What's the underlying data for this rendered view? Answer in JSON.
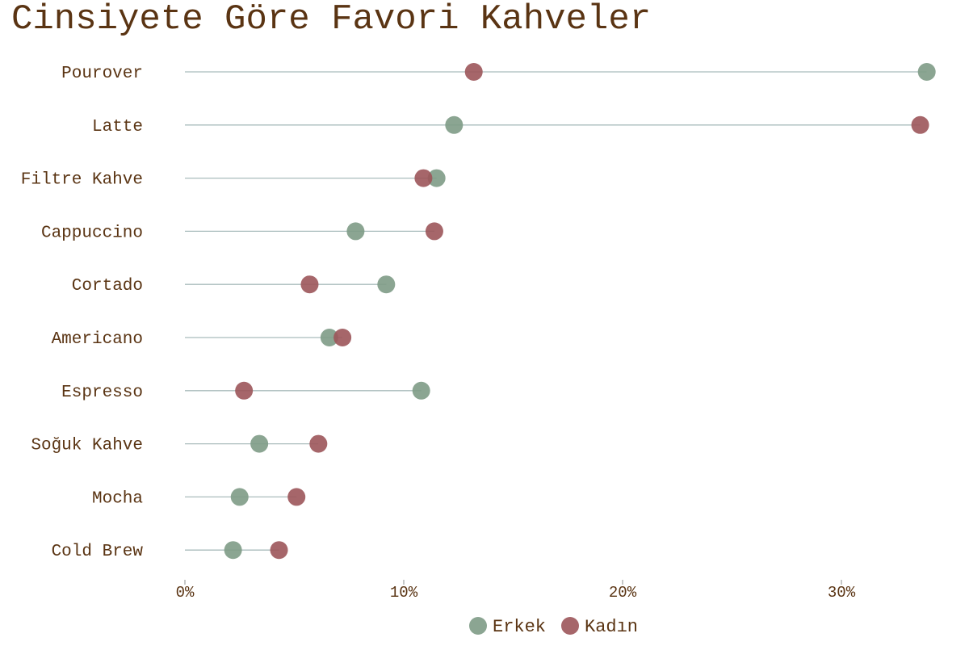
{
  "chart_data": {
    "type": "dot",
    "title": "Cinsiyete Göre Favori Kahveler",
    "xlabel": "",
    "ylabel": "",
    "x_unit": "%",
    "xlim": [
      0,
      35
    ],
    "xticks": [
      0,
      10,
      20,
      30
    ],
    "tick_labels": [
      "0%",
      "10%",
      "20%",
      "30%"
    ],
    "grid": false,
    "legend_position": "bottom",
    "categories": [
      "Pourover",
      "Latte",
      "Filtre Kahve",
      "Cappuccino",
      "Cortado",
      "Americano",
      "Espresso",
      "Soğuk Kahve",
      "Mocha",
      "Cold Brew"
    ],
    "series": [
      {
        "name": "Erkek",
        "color": "#7e9b86",
        "values": [
          33.9,
          12.3,
          11.5,
          7.8,
          9.2,
          6.6,
          10.8,
          3.4,
          2.5,
          2.2
        ]
      },
      {
        "name": "Kadın",
        "color": "#9c555a",
        "values": [
          13.2,
          33.6,
          10.9,
          11.4,
          5.7,
          7.2,
          2.7,
          6.1,
          5.1,
          4.3
        ]
      }
    ]
  }
}
